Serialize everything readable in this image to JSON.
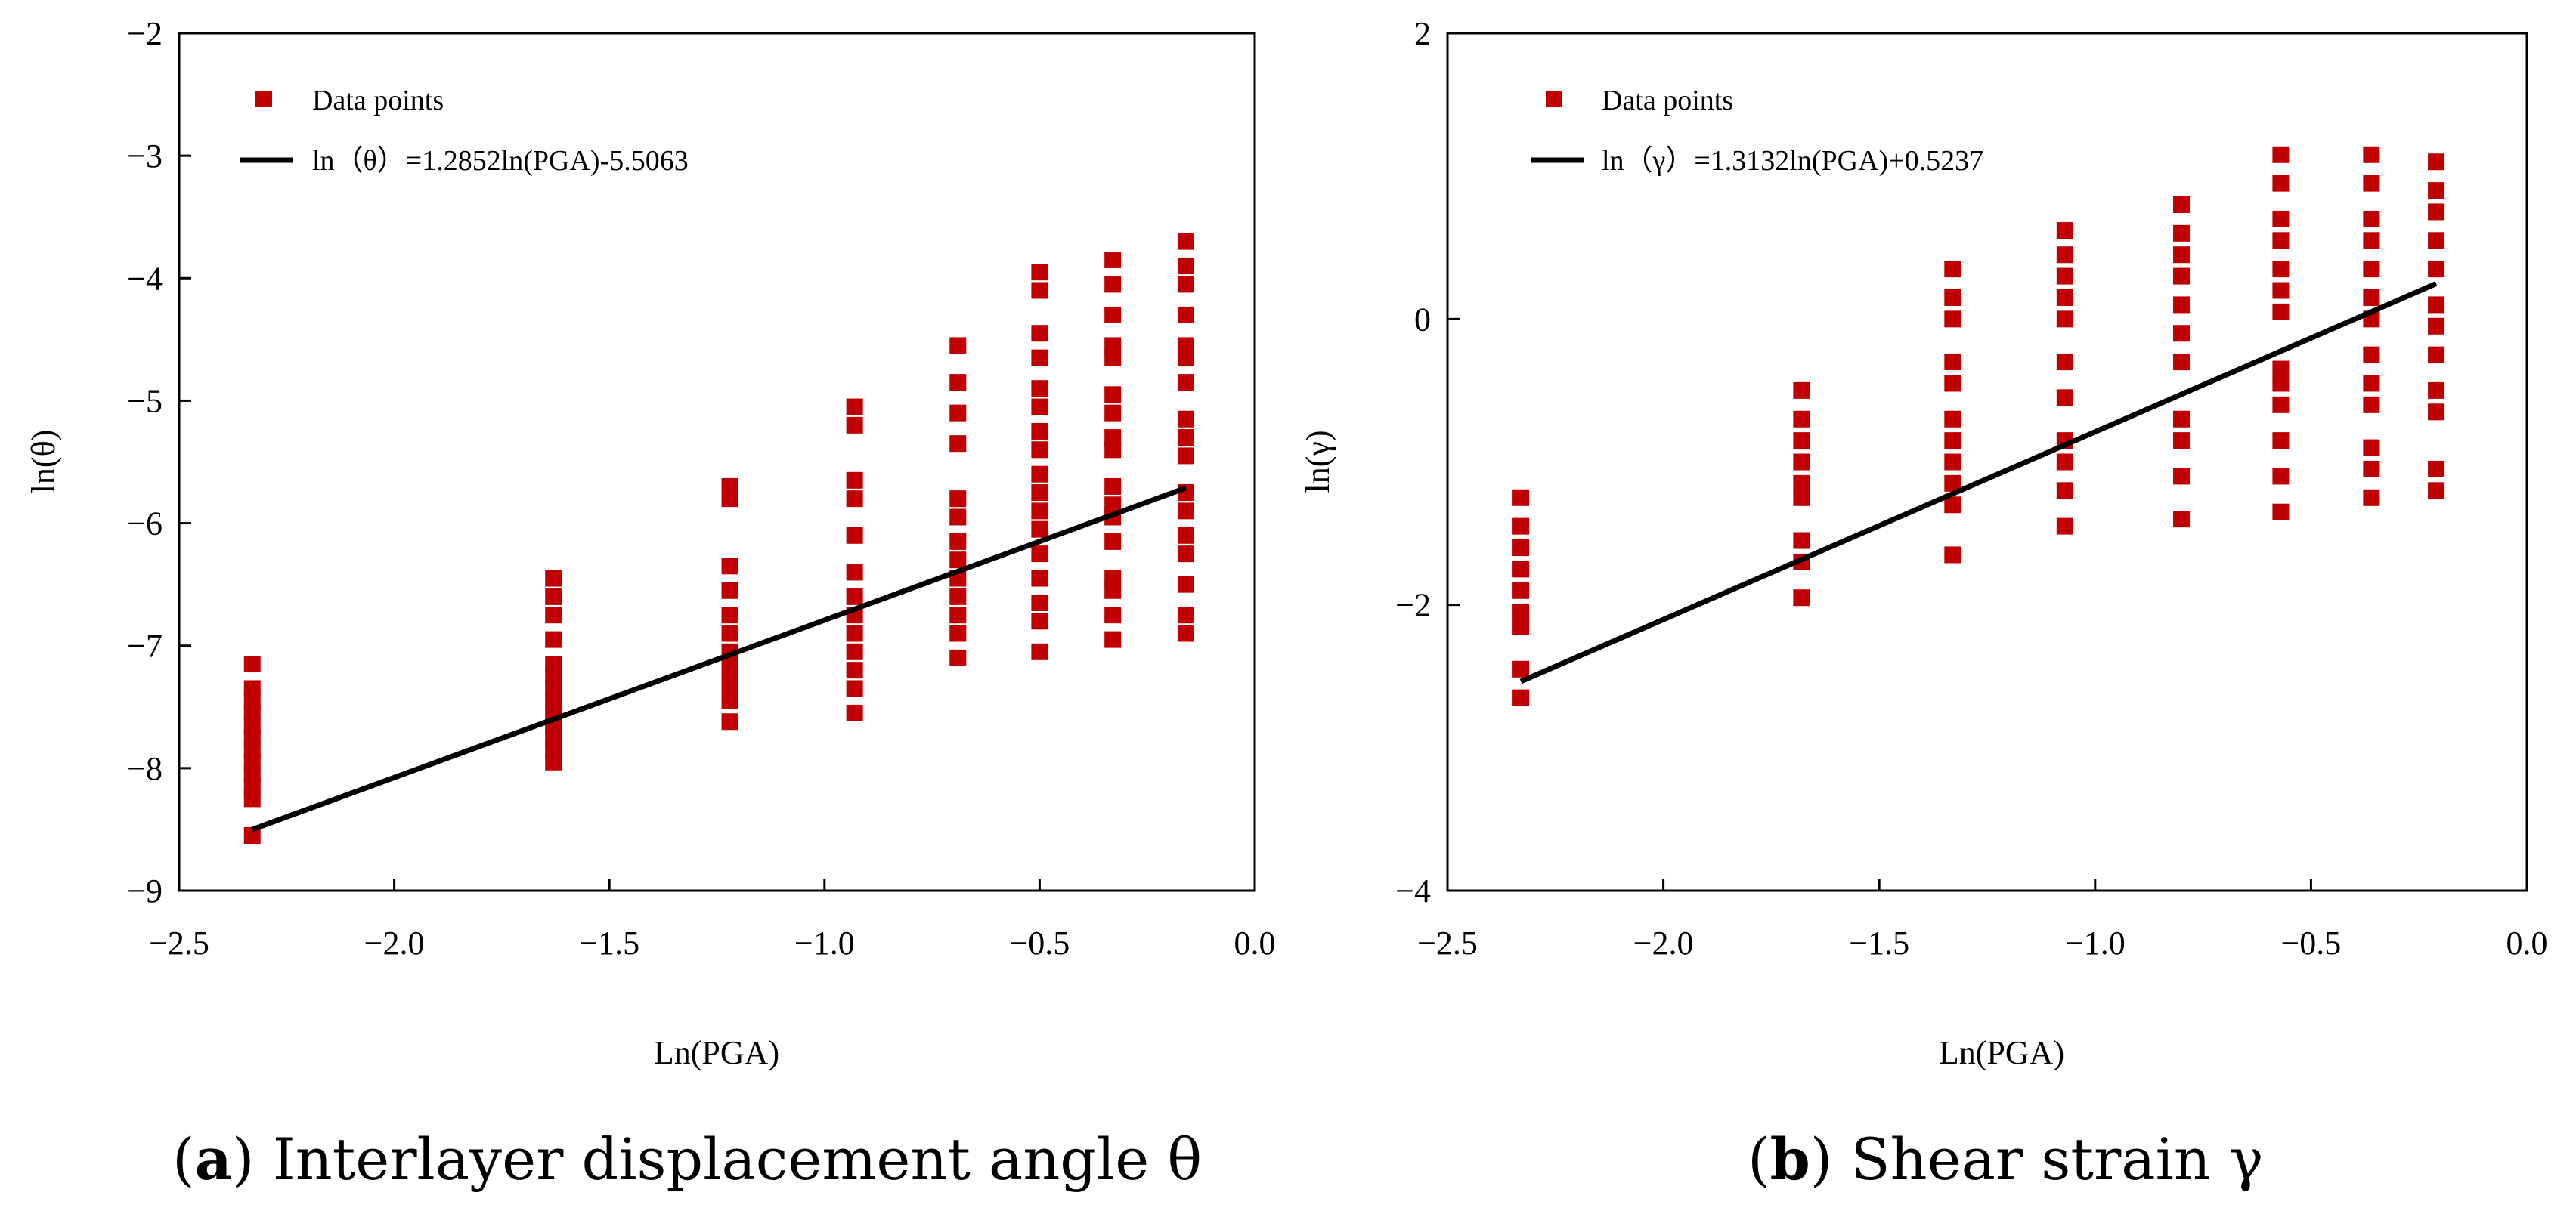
{
  "colors": {
    "points": "#C00000",
    "line": "#000000"
  },
  "chart_data": [
    {
      "type": "scatter",
      "xlabel": "Ln(PGA)",
      "ylabel": "ln(θ)",
      "xlim": [
        -2.5,
        0.0
      ],
      "ylim": [
        -9,
        -2
      ],
      "xticks": [
        -2.5,
        -2.0,
        -1.5,
        -1.0,
        -0.5,
        0.0
      ],
      "xtick_labels": [
        "−2.5",
        "−2.0",
        "−1.5",
        "−1.0",
        "−0.5",
        "0.0"
      ],
      "yticks": [
        -9,
        -8,
        -7,
        -6,
        -5,
        -4,
        -3,
        -2
      ],
      "ytick_labels": [
        "−9",
        "−8",
        "−7",
        "−6",
        "−5",
        "−4",
        "−3",
        "−2"
      ],
      "legend": {
        "position": "top-left",
        "points_label": "Data points",
        "line_label": "ln（θ）=1.2852ln(PGA)-5.5063"
      },
      "caption": {
        "letter": "a",
        "text": " Interlayer displacement angle θ"
      },
      "fit": {
        "slope": 1.2852,
        "intercept": -5.5063,
        "x_range": [
          -2.33,
          -0.16
        ]
      },
      "series": [
        {
          "x": -2.33,
          "y": [
            -7.15,
            -7.35,
            -7.45,
            -7.55,
            -7.65,
            -7.75,
            -7.85,
            -7.95,
            -8.05,
            -8.15,
            -8.25,
            -8.55
          ]
        },
        {
          "x": -1.63,
          "y": [
            -6.45,
            -6.6,
            -6.75,
            -6.95,
            -7.15,
            -7.25,
            -7.35,
            -7.45,
            -7.55,
            -7.65,
            -7.75,
            -7.85,
            -7.95
          ]
        },
        {
          "x": -1.22,
          "y": [
            -5.7,
            -5.8,
            -6.35,
            -6.55,
            -6.75,
            -6.9,
            -7.05,
            -7.15,
            -7.25,
            -7.35,
            -7.45,
            -7.62
          ]
        },
        {
          "x": -0.93,
          "y": [
            -5.05,
            -5.2,
            -5.65,
            -5.8,
            -6.1,
            -6.4,
            -6.6,
            -6.75,
            -6.9,
            -7.05,
            -7.2,
            -7.35,
            -7.55
          ]
        },
        {
          "x": -0.69,
          "y": [
            -4.55,
            -4.85,
            -5.1,
            -5.35,
            -5.8,
            -5.95,
            -6.15,
            -6.3,
            -6.45,
            -6.6,
            -6.75,
            -6.9,
            -7.1
          ]
        },
        {
          "x": -0.5,
          "y": [
            -3.95,
            -4.1,
            -4.45,
            -4.65,
            -4.9,
            -5.05,
            -5.25,
            -5.4,
            -5.6,
            -5.75,
            -5.9,
            -6.05,
            -6.25,
            -6.45,
            -6.65,
            -6.8,
            -7.05
          ]
        },
        {
          "x": -0.33,
          "y": [
            -3.85,
            -4.05,
            -4.3,
            -4.55,
            -4.65,
            -4.95,
            -5.1,
            -5.3,
            -5.4,
            -5.7,
            -5.85,
            -5.95,
            -6.15,
            -6.45,
            -6.55,
            -6.75,
            -6.95
          ]
        },
        {
          "x": -0.16,
          "y": [
            -3.7,
            -3.9,
            -4.05,
            -4.3,
            -4.55,
            -4.65,
            -4.85,
            -5.15,
            -5.3,
            -5.45,
            -5.75,
            -5.9,
            -6.1,
            -6.25,
            -6.5,
            -6.75,
            -6.9
          ]
        }
      ]
    },
    {
      "type": "scatter",
      "xlabel": "Ln(PGA)",
      "ylabel": "ln(γ)",
      "xlim": [
        -2.5,
        0.0
      ],
      "ylim": [
        -4,
        2
      ],
      "xticks": [
        -2.5,
        -2.0,
        -1.5,
        -1.0,
        -0.5,
        0.0
      ],
      "xtick_labels": [
        "−2.5",
        "−2.0",
        "−1.5",
        "−1.0",
        "−0.5",
        "0.0"
      ],
      "yticks": [
        -4,
        -2,
        0,
        2
      ],
      "ytick_labels": [
        "−4",
        "−2",
        "0",
        "2"
      ],
      "legend": {
        "position": "top-left",
        "points_label": "Data points",
        "line_label": "ln（γ）=1.3132ln(PGA)+0.5237"
      },
      "caption": {
        "letter": "b",
        "text": " Shear strain γ"
      },
      "fit": {
        "slope": 1.3132,
        "intercept": 0.5237,
        "x_range": [
          -2.33,
          -0.21
        ]
      },
      "series": [
        {
          "x": -2.33,
          "y": [
            -1.25,
            -1.45,
            -1.6,
            -1.75,
            -1.9,
            -2.05,
            -2.15,
            -2.45,
            -2.65
          ]
        },
        {
          "x": -1.68,
          "y": [
            -0.5,
            -0.7,
            -0.85,
            -1.0,
            -1.15,
            -1.25,
            -1.55,
            -1.7,
            -1.95
          ]
        },
        {
          "x": -1.33,
          "y": [
            0.35,
            0.15,
            0.0,
            -0.3,
            -0.45,
            -0.7,
            -0.85,
            -1.0,
            -1.15,
            -1.3,
            -1.65
          ]
        },
        {
          "x": -1.07,
          "y": [
            0.62,
            0.45,
            0.3,
            0.15,
            0.0,
            -0.3,
            -0.55,
            -0.85,
            -1.0,
            -1.2,
            -1.45
          ]
        },
        {
          "x": -0.8,
          "y": [
            0.8,
            0.6,
            0.45,
            0.3,
            0.1,
            -0.1,
            -0.3,
            -0.7,
            -0.85,
            -1.1,
            -1.4
          ]
        },
        {
          "x": -0.57,
          "y": [
            1.15,
            0.95,
            0.7,
            0.55,
            0.35,
            0.2,
            0.05,
            -0.35,
            -0.45,
            -0.6,
            -0.85,
            -1.1,
            -1.35
          ]
        },
        {
          "x": -0.36,
          "y": [
            1.15,
            0.95,
            0.7,
            0.55,
            0.35,
            0.15,
            0.0,
            -0.25,
            -0.45,
            -0.6,
            -0.9,
            -1.05,
            -1.25
          ]
        },
        {
          "x": -0.21,
          "y": [
            1.1,
            0.9,
            0.75,
            0.55,
            0.35,
            0.1,
            -0.05,
            -0.25,
            -0.5,
            -0.65,
            -1.05,
            -1.2
          ]
        }
      ]
    }
  ]
}
